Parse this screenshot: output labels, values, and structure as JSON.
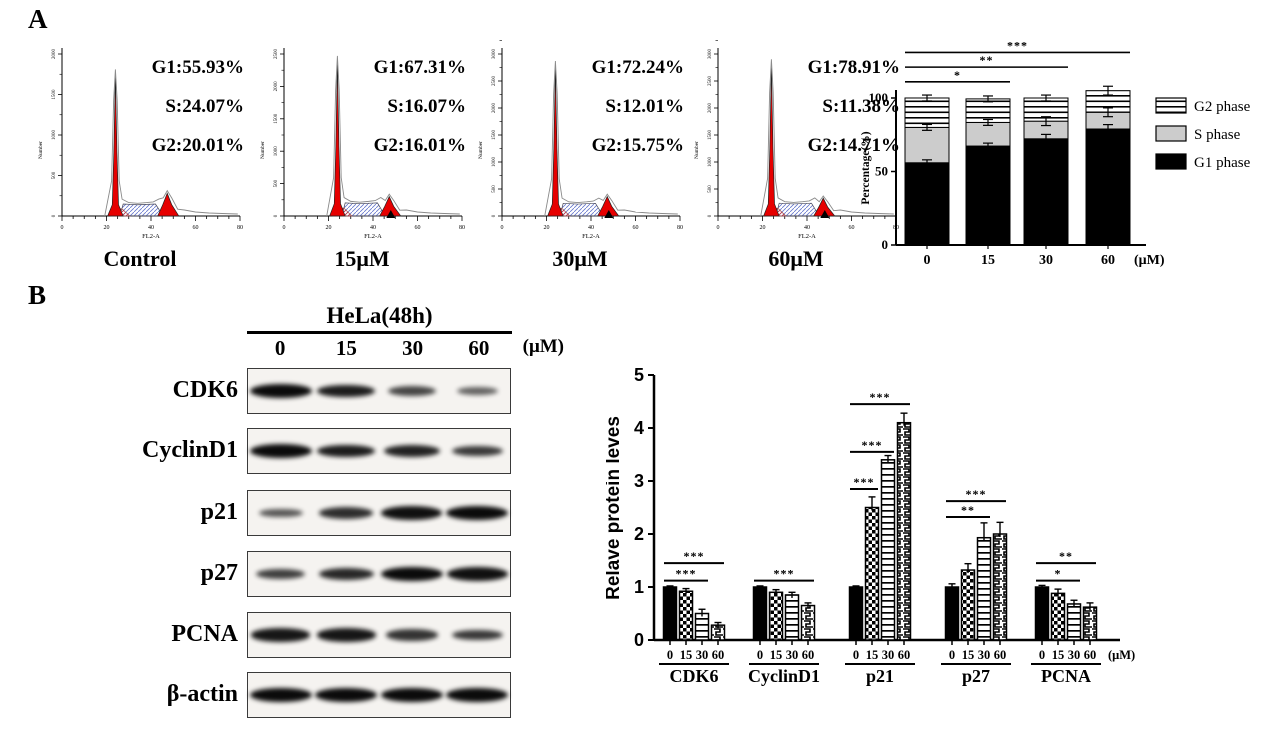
{
  "figure": {
    "panel_a_label": "A",
    "panel_b_label": "B"
  },
  "flow_plots": [
    {
      "label": "Control",
      "g1": "G1:55.93%",
      "s": "S:24.07%",
      "g2": "G2:20.01%",
      "ylabel": "Number",
      "xlabel": "FL2-A",
      "yticks": [
        "0",
        "500",
        "1000",
        "1500",
        "2000"
      ],
      "xticks": [
        "0",
        "20",
        "40",
        "60",
        "80"
      ],
      "g1_height": 0.87,
      "g2_height": 0.14,
      "marker": false
    },
    {
      "label": "15μM",
      "g1": "G1:67.31%",
      "s": "S:16.07%",
      "g2": "G2:16.01%",
      "ylabel": "Number",
      "xlabel": "FL2-A",
      "yticks": [
        "0",
        "500",
        "1000",
        "1500",
        "2000",
        "2500"
      ],
      "xticks": [
        "0",
        "20",
        "40",
        "60",
        "80"
      ],
      "g1_height": 0.95,
      "g2_height": 0.12,
      "marker": true
    },
    {
      "label": "30μM",
      "g1": "G1:72.24%",
      "s": "S:12.01%",
      "g2": "G2:15.75%",
      "ylabel": "Number",
      "xlabel": "FL2-A",
      "yticks": [
        "0",
        "500",
        "1000",
        "1500",
        "2000",
        "2500",
        "3000"
      ],
      "xticks": [
        "0",
        "20",
        "40",
        "60",
        "80"
      ],
      "g1_height": 0.92,
      "g2_height": 0.12,
      "marker": true
    },
    {
      "label": "60μM",
      "g1": "G1:78.91%",
      "s": "S:11.38%",
      "g2": "G2:14.71%",
      "ylabel": "Number",
      "xlabel": "FL2-A",
      "yticks": [
        "0",
        "500",
        "1000",
        "1500",
        "2000",
        "2500",
        "3000"
      ],
      "xticks": [
        "0",
        "20",
        "40",
        "60",
        "80"
      ],
      "g1_height": 0.93,
      "g2_height": 0.11,
      "marker": true
    }
  ],
  "chart_data": [
    {
      "id": "cell_cycle_stacked",
      "type": "bar",
      "subtype": "stacked",
      "categories": [
        "0",
        "15",
        "30",
        "60"
      ],
      "x_unit": "(μM)",
      "ylabel": "Percentage(%)",
      "ylim": [
        0,
        100
      ],
      "yticks": [
        0,
        50,
        100
      ],
      "series": [
        {
          "name": "G1 phase",
          "style": "solid-black",
          "values": [
            55.93,
            67.31,
            72.24,
            78.91
          ],
          "errors": [
            2,
            2,
            3,
            3
          ]
        },
        {
          "name": "S phase",
          "style": "solid-gray",
          "values": [
            24.07,
            16.07,
            12.01,
            11.38
          ],
          "errors": [
            2,
            2,
            3,
            3
          ]
        },
        {
          "name": "G2 phase",
          "style": "hlines",
          "values": [
            20.01,
            16.01,
            15.75,
            14.71
          ],
          "errors": [
            2,
            2,
            2,
            3
          ]
        }
      ],
      "legend": [
        {
          "label": "G2 phase",
          "style": "hlines"
        },
        {
          "label": "S  phase",
          "style": "solid-gray"
        },
        {
          "label": "G1 phase",
          "style": "solid-black"
        }
      ],
      "significance": [
        {
          "from": 0,
          "to": 1,
          "label": "*",
          "y": 111
        },
        {
          "from": 0,
          "to": 2,
          "label": "**",
          "y": 121
        },
        {
          "from": 0,
          "to": 3,
          "label": "***",
          "y": 131
        }
      ]
    },
    {
      "id": "protein_levels",
      "type": "bar",
      "subtype": "grouped",
      "ylabel": "Relave protein leves",
      "ylim": [
        0,
        5
      ],
      "yticks": [
        0,
        1,
        2,
        3,
        4,
        5
      ],
      "doses": [
        "0",
        "15",
        "30",
        "60"
      ],
      "x_unit": "(μM)",
      "bar_styles": [
        "solid-black",
        "checker",
        "hlines",
        "meander"
      ],
      "groups": [
        {
          "name": "CDK6",
          "values": [
            1.0,
            0.92,
            0.5,
            0.28
          ],
          "errors": [
            0.02,
            0.05,
            0.08,
            0.05
          ],
          "significance": [
            {
              "from": 0,
              "to": 2,
              "label": "***",
              "y": 1.12
            },
            {
              "from": 0,
              "to": 3,
              "label": "***",
              "y": 1.45
            }
          ]
        },
        {
          "name": "CyclinD1",
          "values": [
            1.0,
            0.9,
            0.85,
            0.65
          ],
          "errors": [
            0.02,
            0.05,
            0.05,
            0.05
          ],
          "significance": [
            {
              "from": 0,
              "to": 3,
              "label": "***",
              "y": 1.12
            }
          ]
        },
        {
          "name": "p21",
          "values": [
            1.0,
            2.5,
            3.4,
            4.1
          ],
          "errors": [
            0.02,
            0.2,
            0.08,
            0.18
          ],
          "significance": [
            {
              "from": 0,
              "to": 1,
              "label": "***",
              "y": 2.85
            },
            {
              "from": 0,
              "to": 2,
              "label": "***",
              "y": 3.55
            },
            {
              "from": 0,
              "to": 3,
              "label": "***",
              "y": 4.45
            }
          ]
        },
        {
          "name": "p27",
          "values": [
            1.0,
            1.32,
            1.93,
            2.0
          ],
          "errors": [
            0.06,
            0.12,
            0.28,
            0.22
          ],
          "significance": [
            {
              "from": 0,
              "to": 2,
              "label": "**",
              "y": 2.32
            },
            {
              "from": 0,
              "to": 3,
              "label": "***",
              "y": 2.62
            }
          ]
        },
        {
          "name": "PCNA",
          "values": [
            1.0,
            0.88,
            0.68,
            0.62
          ],
          "errors": [
            0.03,
            0.08,
            0.07,
            0.08
          ],
          "significance": [
            {
              "from": 0,
              "to": 2,
              "label": "*",
              "y": 1.12
            },
            {
              "from": 0,
              "to": 3,
              "label": "**",
              "y": 1.45
            }
          ]
        }
      ]
    }
  ],
  "western_blot": {
    "header": "HeLa(48h)",
    "lanes": [
      "0",
      "15",
      "30",
      "60"
    ],
    "lane_unit": "(μM)",
    "rows": [
      {
        "label": "CDK6",
        "intensities": [
          1.0,
          0.85,
          0.5,
          0.25
        ]
      },
      {
        "label": "CyclinD1",
        "intensities": [
          1.0,
          0.85,
          0.8,
          0.6
        ]
      },
      {
        "label": "p21",
        "intensities": [
          0.35,
          0.7,
          0.95,
          1.0
        ]
      },
      {
        "label": "p27",
        "intensities": [
          0.55,
          0.75,
          1.0,
          0.95
        ]
      },
      {
        "label": "PCNA",
        "intensities": [
          0.9,
          0.9,
          0.65,
          0.6
        ]
      },
      {
        "label": "β-actin",
        "intensities": [
          1.0,
          1.0,
          1.0,
          1.0
        ]
      }
    ]
  },
  "colors": {
    "peak_red": "#e60000",
    "s_fill": "#cccccc",
    "curve_gray": "#8a8a8a",
    "hatch_blue": "#6677cc",
    "hatch_red": "#cc3344",
    "black": "#000000"
  }
}
